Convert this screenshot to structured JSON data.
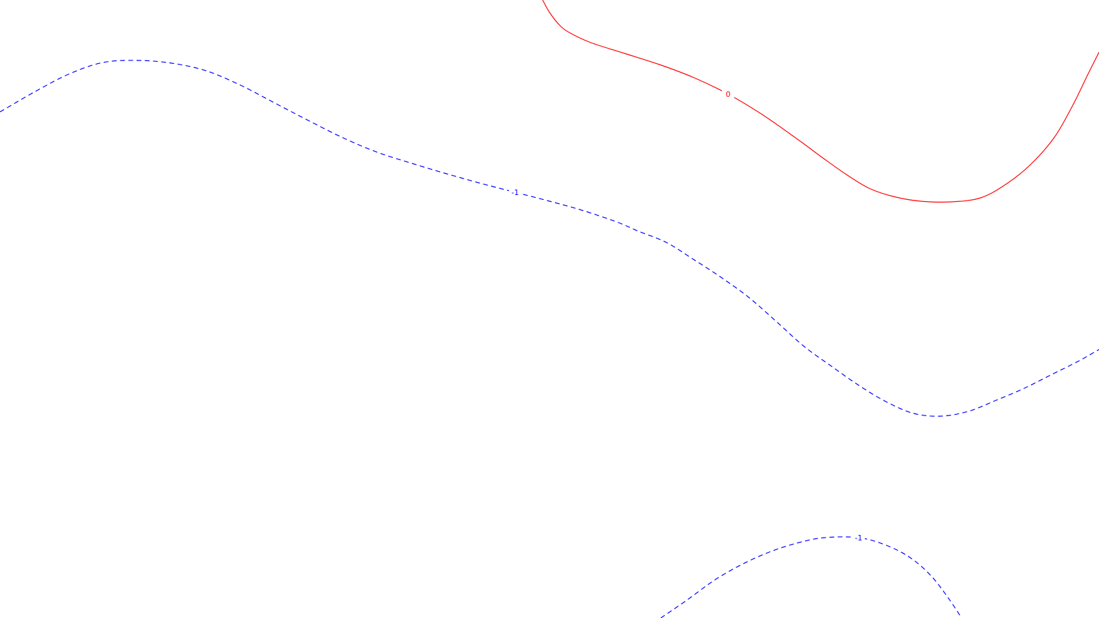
{
  "chart_data": {
    "type": "contour",
    "title": "",
    "xlabel": "",
    "ylabel": "",
    "grid": false,
    "legend": "none",
    "levels": [
      {
        "level_label": "0",
        "color": "#ff0000",
        "line_style": "solid",
        "segments": [
          {
            "label_text": "0",
            "label_at_point": 8,
            "points": [
              [
                790,
                0
              ],
              [
                800,
                18
              ],
              [
                815,
                37
              ],
              [
                830,
                48
              ],
              [
                860,
                62
              ],
              [
                910,
                78
              ],
              [
                960,
                94
              ],
              [
                1010,
                113
              ],
              [
                1060,
                137
              ],
              [
                1110,
                167
              ],
              [
                1160,
                202
              ],
              [
                1198,
                230
              ],
              [
                1232,
                254
              ],
              [
                1265,
                274
              ],
              [
                1300,
                286
              ],
              [
                1340,
                293
              ],
              [
                1385,
                294
              ],
              [
                1428,
                288
              ],
              [
                1465,
                268
              ],
              [
                1500,
                240
              ],
              [
                1535,
                200
              ],
              [
                1562,
                153
              ],
              [
                1583,
                110
              ],
              [
                1600,
                76
              ]
            ]
          }
        ]
      },
      {
        "level_label": "-1",
        "color": "#0000ff",
        "line_style": "dashed",
        "segments": [
          {
            "label_text": "-1",
            "label_at_point": 15,
            "points": [
              [
                0,
                163
              ],
              [
                50,
                134
              ],
              [
                100,
                108
              ],
              [
                150,
                91
              ],
              [
                200,
                88
              ],
              [
                250,
                92
              ],
              [
                300,
                103
              ],
              [
                350,
                124
              ],
              [
                400,
                150
              ],
              [
                450,
                176
              ],
              [
                500,
                201
              ],
              [
                550,
                222
              ],
              [
                600,
                238
              ],
              [
                650,
                253
              ],
              [
                700,
                267
              ],
              [
                750,
                280
              ],
              [
                800,
                293
              ],
              [
                850,
                307
              ],
              [
                900,
                324
              ],
              [
                930,
                337
              ],
              [
                970,
                353
              ],
              [
                1010,
                378
              ],
              [
                1050,
                404
              ],
              [
                1090,
                433
              ],
              [
                1130,
                468
              ],
              [
                1170,
                504
              ],
              [
                1210,
                533
              ],
              [
                1250,
                561
              ],
              [
                1290,
                585
              ],
              [
                1330,
                602
              ],
              [
                1370,
                606
              ],
              [
                1410,
                599
              ],
              [
                1450,
                583
              ],
              [
                1490,
                566
              ],
              [
                1530,
                546
              ],
              [
                1570,
                526
              ],
              [
                1600,
                509
              ]
            ]
          },
          {
            "label_text": "-1",
            "label_at_point": 7,
            "points": [
              [
                962,
                900
              ],
              [
                1000,
                874
              ],
              [
                1040,
                845
              ],
              [
                1080,
                822
              ],
              [
                1120,
                804
              ],
              [
                1160,
                791
              ],
              [
                1200,
                783
              ],
              [
                1250,
                783
              ],
              [
                1290,
                794
              ],
              [
                1325,
                812
              ],
              [
                1355,
                838
              ],
              [
                1380,
                870
              ],
              [
                1400,
                900
              ]
            ]
          }
        ]
      }
    ]
  }
}
